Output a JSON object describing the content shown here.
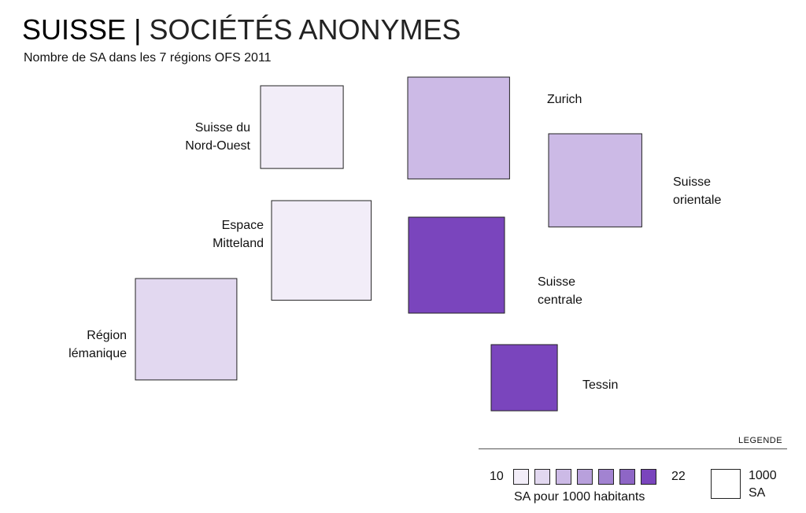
{
  "title": {
    "main": "SUISSE",
    "separator": "|",
    "sub": "SOCIÉTÉS ANONYMES"
  },
  "subtitle": "Nombre de SA dans les 7 régions OFS 2011",
  "chart_data": {
    "type": "proportional-square map",
    "title": "SUISSE | SOCIÉTÉS ANONYMES",
    "subtitle": "Nombre de SA dans les 7 régions OFS 2011",
    "size_unit": "SA",
    "color_unit": "SA pour 1000 habitants",
    "color_scale": {
      "min": 10,
      "max": 22,
      "colors": [
        "#f2edf8",
        "#e2d8f0",
        "#ccbae6",
        "#b8a0dc",
        "#a283d1",
        "#8e66c6",
        "#7a45bd"
      ]
    },
    "regions": [
      {
        "name": "Suisse du Nord-Ouest",
        "label_lines": [
          "Suisse du",
          "Nord-Ouest"
        ],
        "sa_count": 7650,
        "sa_per_1000": 11,
        "color": "#f2edf8"
      },
      {
        "name": "Zurich",
        "label_lines": [
          "Zurich"
        ],
        "sa_count": 11600,
        "sa_per_1000": 15,
        "color": "#ccbae6"
      },
      {
        "name": "Suisse orientale",
        "label_lines": [
          "Suisse",
          "orientale"
        ],
        "sa_count": 9700,
        "sa_per_1000": 15,
        "color": "#ccbae6"
      },
      {
        "name": "Espace Mitteland",
        "label_lines": [
          "Espace",
          "Mitteland"
        ],
        "sa_count": 11100,
        "sa_per_1000": 11,
        "color": "#f2edf8"
      },
      {
        "name": "Suisse centrale",
        "label_lines": [
          "Suisse",
          "centrale"
        ],
        "sa_count": 10300,
        "sa_per_1000": 22,
        "color": "#7a45bd"
      },
      {
        "name": "Région lémanique",
        "label_lines": [
          "Région",
          "lémanique"
        ],
        "sa_count": 11500,
        "sa_per_1000": 13,
        "color": "#e2d8f0"
      },
      {
        "name": "Tessin",
        "label_lines": [
          "Tessin"
        ],
        "sa_count": 4900,
        "sa_per_1000": 22,
        "color": "#7a45bd"
      }
    ],
    "legend": {
      "title": "LEGENDE",
      "color_min_label": "10",
      "color_max_label": "22",
      "color_caption": "SA pour 1000 habitants",
      "size_reference_value": "1000",
      "size_reference_unit": "SA"
    }
  }
}
